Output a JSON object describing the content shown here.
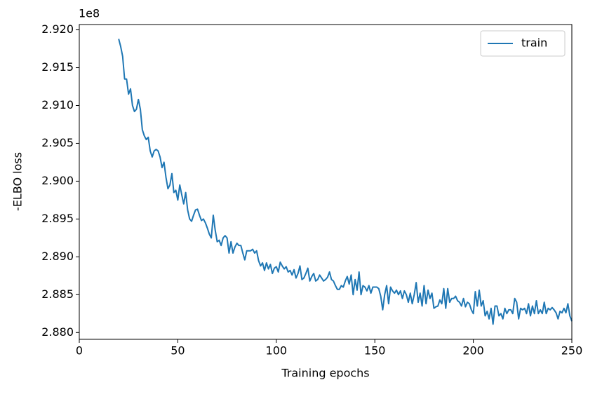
{
  "chart_data": {
    "type": "line",
    "xlabel": "Training epochs",
    "ylabel": "-ELBO loss",
    "y_offset_label": "1e8",
    "xlim": [
      0,
      250
    ],
    "xticks": [
      0,
      50,
      100,
      150,
      200,
      250
    ],
    "ylim": [
      2.8791,
      2.9207
    ],
    "yticks": [
      {
        "value": 2.88,
        "label": "2.880"
      },
      {
        "value": 2.885,
        "label": "2.885"
      },
      {
        "value": 2.89,
        "label": "2.890"
      },
      {
        "value": 2.895,
        "label": "2.895"
      },
      {
        "value": 2.9,
        "label": "2.900"
      },
      {
        "value": 2.905,
        "label": "2.905"
      },
      {
        "value": 2.91,
        "label": "2.910"
      },
      {
        "value": 2.915,
        "label": "2.915"
      },
      {
        "value": 2.92,
        "label": "2.920"
      }
    ],
    "legend": "upper right",
    "x": [
      20,
      21,
      22,
      23,
      24,
      25,
      26,
      27,
      28,
      29,
      30,
      31,
      32,
      33,
      34,
      35,
      36,
      37,
      38,
      39,
      40,
      41,
      42,
      43,
      44,
      45,
      46,
      47,
      48,
      49,
      50,
      51,
      52,
      53,
      54,
      55,
      56,
      57,
      58,
      59,
      60,
      61,
      62,
      63,
      64,
      65,
      66,
      67,
      68,
      69,
      70,
      71,
      72,
      73,
      74,
      75,
      76,
      77,
      78,
      79,
      80,
      81,
      82,
      83,
      84,
      85,
      86,
      87,
      88,
      89,
      90,
      91,
      92,
      93,
      94,
      95,
      96,
      97,
      98,
      99,
      100,
      101,
      102,
      103,
      104,
      105,
      106,
      107,
      108,
      109,
      110,
      111,
      112,
      113,
      114,
      115,
      116,
      117,
      118,
      119,
      120,
      121,
      122,
      123,
      124,
      125,
      126,
      127,
      128,
      129,
      130,
      131,
      132,
      133,
      134,
      135,
      136,
      137,
      138,
      139,
      140,
      141,
      142,
      143,
      144,
      145,
      146,
      147,
      148,
      149,
      150,
      151,
      152,
      153,
      154,
      155,
      156,
      157,
      158,
      159,
      160,
      161,
      162,
      163,
      164,
      165,
      166,
      167,
      168,
      169,
      170,
      171,
      172,
      173,
      174,
      175,
      176,
      177,
      178,
      179,
      180,
      181,
      182,
      183,
      184,
      185,
      186,
      187,
      188,
      189,
      190,
      191,
      192,
      193,
      194,
      195,
      196,
      197,
      198,
      199,
      200,
      201,
      202,
      203,
      204,
      205,
      206,
      207,
      208,
      209,
      210,
      211,
      212,
      213,
      214,
      215,
      216,
      217,
      218,
      219,
      220,
      221,
      222,
      223,
      224,
      225,
      226,
      227,
      228,
      229,
      230,
      231,
      232,
      233,
      234,
      235,
      236,
      237,
      238,
      239,
      240,
      241,
      242,
      243,
      244,
      245,
      246,
      247,
      248,
      249,
      250
    ],
    "series": [
      {
        "name": "train",
        "color": "#1f77b4",
        "values": [
          2.9188,
          2.9178,
          2.9165,
          2.9135,
          2.9135,
          2.9115,
          2.9122,
          2.91,
          2.9092,
          2.9095,
          2.9108,
          2.9095,
          2.9068,
          2.906,
          2.9055,
          2.9058,
          2.904,
          2.9032,
          2.904,
          2.9042,
          2.904,
          2.9032,
          2.9018,
          2.9025,
          2.9005,
          2.899,
          2.8995,
          2.901,
          2.8985,
          2.8988,
          2.8975,
          2.8995,
          2.8982,
          2.897,
          2.8985,
          2.8962,
          2.895,
          2.8947,
          2.8955,
          2.8962,
          2.8963,
          2.8955,
          2.8948,
          2.895,
          2.8945,
          2.8938,
          2.893,
          2.8925,
          2.8955,
          2.8935,
          2.892,
          2.8922,
          2.8915,
          2.8925,
          2.8928,
          2.8925,
          2.8905,
          2.892,
          2.8905,
          2.8913,
          2.8918,
          2.8915,
          2.8915,
          2.8905,
          2.8896,
          2.8908,
          2.8908,
          2.8908,
          2.891,
          2.8905,
          2.8908,
          2.8895,
          2.8888,
          2.8892,
          2.8882,
          2.8892,
          2.8884,
          2.889,
          2.8878,
          2.8885,
          2.8887,
          2.888,
          2.8893,
          2.8888,
          2.8884,
          2.8887,
          2.888,
          2.8882,
          2.8876,
          2.8883,
          2.8872,
          2.8878,
          2.8888,
          2.887,
          2.8872,
          2.8878,
          2.8885,
          2.8868,
          2.8874,
          2.8878,
          2.8868,
          2.887,
          2.8876,
          2.8872,
          2.8868,
          2.887,
          2.8873,
          2.888,
          2.887,
          2.8868,
          2.8862,
          2.8857,
          2.8857,
          2.8862,
          2.886,
          2.8868,
          2.8874,
          2.8864,
          2.8876,
          2.885,
          2.887,
          2.8856,
          2.888,
          2.885,
          2.8862,
          2.886,
          2.8855,
          2.8862,
          2.8852,
          2.886,
          2.886,
          2.886,
          2.8858,
          2.8848,
          2.883,
          2.885,
          2.8862,
          2.8838,
          2.886,
          2.8855,
          2.8852,
          2.8856,
          2.885,
          2.8855,
          2.8845,
          2.8855,
          2.885,
          2.884,
          2.8852,
          2.8838,
          2.885,
          2.8866,
          2.884,
          2.8852,
          2.8835,
          2.8862,
          2.8838,
          2.8856,
          2.8845,
          2.8852,
          2.8832,
          2.8834,
          2.8835,
          2.8843,
          2.8838,
          2.8858,
          2.8832,
          2.8858,
          2.884,
          2.8845,
          2.8845,
          2.8848,
          2.8842,
          2.884,
          2.8835,
          2.8845,
          2.8834,
          2.884,
          2.8838,
          2.883,
          2.8825,
          2.8854,
          2.8835,
          2.8856,
          2.8835,
          2.8842,
          2.8822,
          2.8828,
          2.8818,
          2.8832,
          2.8811,
          2.8835,
          2.8835,
          2.8822,
          2.8825,
          2.8818,
          2.8832,
          2.8825,
          2.883,
          2.883,
          2.8825,
          2.8845,
          2.884,
          2.8818,
          2.8832,
          2.883,
          2.8832,
          2.8825,
          2.8838,
          2.8822,
          2.8835,
          2.8825,
          2.8842,
          2.8825,
          2.883,
          2.8825,
          2.884,
          2.8825,
          2.8832,
          2.883,
          2.8833,
          2.883,
          2.8826,
          2.8818,
          2.8828,
          2.8826,
          2.8832,
          2.8826,
          2.8838,
          2.8822,
          2.8815
        ]
      }
    ]
  }
}
